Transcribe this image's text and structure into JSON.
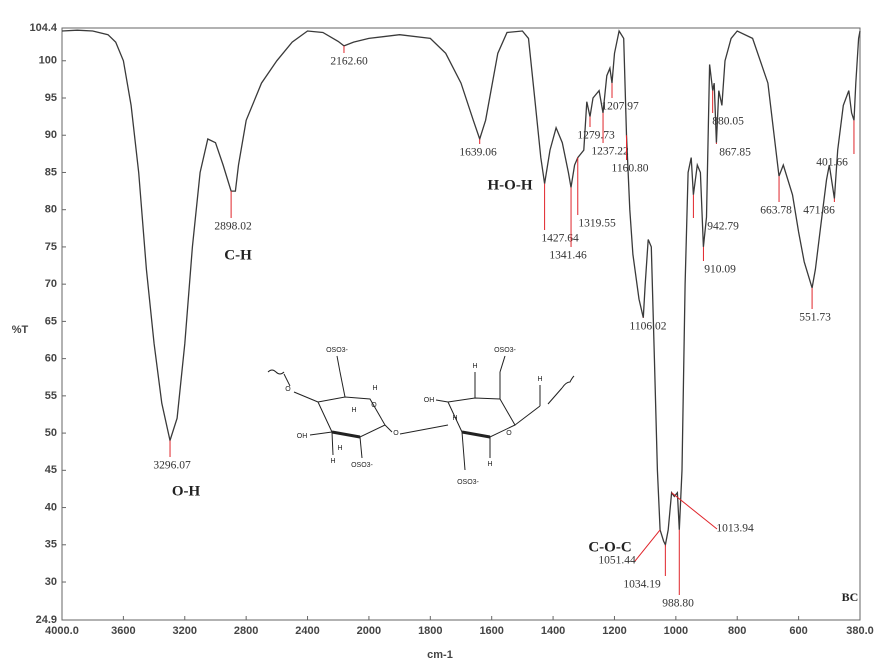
{
  "chart_data": {
    "type": "line",
    "xlabel": "cm-1",
    "ylabel": "%T",
    "sample": "BC",
    "xlim": [
      4000,
      380
    ],
    "ylim": [
      24.9,
      104.4
    ],
    "xticks": [
      {
        "value": 4000,
        "label": "4000.0"
      },
      3600,
      3200,
      2800,
      2400,
      2000,
      1800,
      1600,
      1400,
      1200,
      1000,
      800,
      600,
      {
        "value": 380,
        "label": "380.0"
      }
    ],
    "yticks": [
      24.9,
      30,
      35,
      40,
      45,
      50,
      55,
      60,
      65,
      70,
      75,
      80,
      85,
      90,
      95,
      100,
      104.4
    ],
    "series": [
      {
        "name": "BC",
        "color": "#3a3a3a",
        "x": [
          4000,
          3900,
          3800,
          3700,
          3650,
          3600,
          3550,
          3500,
          3450,
          3400,
          3350,
          3296.07,
          3250,
          3200,
          3150,
          3100,
          3050,
          3000,
          2950,
          2898.02,
          2870,
          2850,
          2800,
          2700,
          2600,
          2500,
          2400,
          2300,
          2200,
          2162.6,
          2100,
          2000,
          1900,
          1800,
          1750,
          1700,
          1660,
          1639.06,
          1620,
          1580,
          1550,
          1500,
          1480,
          1460,
          1440,
          1427.64,
          1410,
          1390,
          1370,
          1350,
          1341.46,
          1330,
          1319.55,
          1300,
          1290,
          1279.73,
          1270,
          1250,
          1237.22,
          1225,
          1215,
          1207.97,
          1200,
          1185,
          1170,
          1160.8,
          1150,
          1140,
          1120,
          1106.02,
          1100,
          1090,
          1080,
          1070,
          1060,
          1051.44,
          1040,
          1034.19,
          1025,
          1013.94,
          1005,
          995,
          988.8,
          980,
          970,
          960,
          950,
          942.79,
          930,
          920,
          910.09,
          900,
          890,
          880.05,
          875,
          867.85,
          860,
          850,
          840,
          820,
          800,
          750,
          700,
          680,
          663.78,
          650,
          620,
          600,
          580,
          551.73,
          540,
          520,
          500,
          490,
          471.86,
          460,
          440,
          420,
          410,
          401.66,
          395,
          385,
          380
        ],
        "values": [
          104,
          104.1,
          104,
          103.5,
          102.5,
          100,
          94,
          85,
          72,
          62,
          54,
          49,
          52,
          62,
          75,
          85,
          89.5,
          89,
          86,
          82.5,
          82.5,
          86,
          92,
          97,
          100,
          102.5,
          104,
          103.8,
          102.6,
          102,
          102.5,
          103,
          103.5,
          103,
          101,
          97,
          92,
          89.5,
          92,
          101,
          103.8,
          104,
          103,
          95,
          87,
          83.5,
          88,
          91,
          89,
          85,
          83,
          86,
          87,
          88,
          94.5,
          92.5,
          95,
          96,
          93,
          98,
          99,
          97,
          101,
          104,
          103,
          90,
          80,
          74,
          68,
          65.5,
          70,
          76,
          75,
          60,
          45,
          37,
          35.5,
          35,
          37,
          42,
          41.5,
          42,
          37,
          45,
          70,
          85,
          87,
          82,
          86,
          85,
          75,
          79,
          99.5,
          96,
          97,
          89,
          96,
          94,
          100,
          103,
          104,
          103,
          97,
          90,
          84.5,
          86,
          82,
          77,
          73,
          69.5,
          72,
          78,
          84,
          86,
          81.5,
          88,
          94,
          96,
          93,
          92,
          97,
          103,
          104
        ]
      }
    ],
    "peaks": {
      "x": [
        2162.6,
        3296.07,
        2898.02,
        1639.06,
        1427.64,
        1341.46,
        1319.55,
        1279.73,
        1237.22,
        1207.97,
        1160.8,
        1106.02,
        1051.44,
        1034.19,
        1013.94,
        988.8,
        942.79,
        910.09,
        880.05,
        867.85,
        663.78,
        551.73,
        471.86,
        401.66
      ],
      "y": [
        102,
        49,
        82.5,
        89.5,
        83.5,
        83,
        87,
        92.5,
        93,
        97,
        90,
        65.5,
        37,
        35,
        42,
        37,
        82,
        75,
        96,
        89,
        84.5,
        69.5,
        81.5,
        92
      ],
      "labels": [
        "2162.60",
        "3296.07",
        "2898.02",
        "1639.06",
        "1427.64",
        "1341.46",
        "1319.55",
        "1279.73",
        "1237.22",
        "1207.97",
        "1160.80",
        "1106.02",
        "1051.44",
        "1034.19",
        "1013.94",
        "988.80",
        "942.79",
        "910.09",
        "880.05",
        "867.85",
        "663.78",
        "551.73",
        "471.86",
        "401.66"
      ]
    },
    "groups": [
      "O-H",
      "C-H",
      "H-O-H",
      "C-O-C"
    ]
  },
  "structure": {
    "labels": [
      "OSO3-",
      "OSO3-",
      "OSO3-",
      "OSO3-",
      "OH",
      "OH",
      "H",
      "H",
      "H",
      "H",
      "H",
      "H",
      "H",
      "H",
      "O",
      "O",
      "O",
      "O"
    ]
  }
}
